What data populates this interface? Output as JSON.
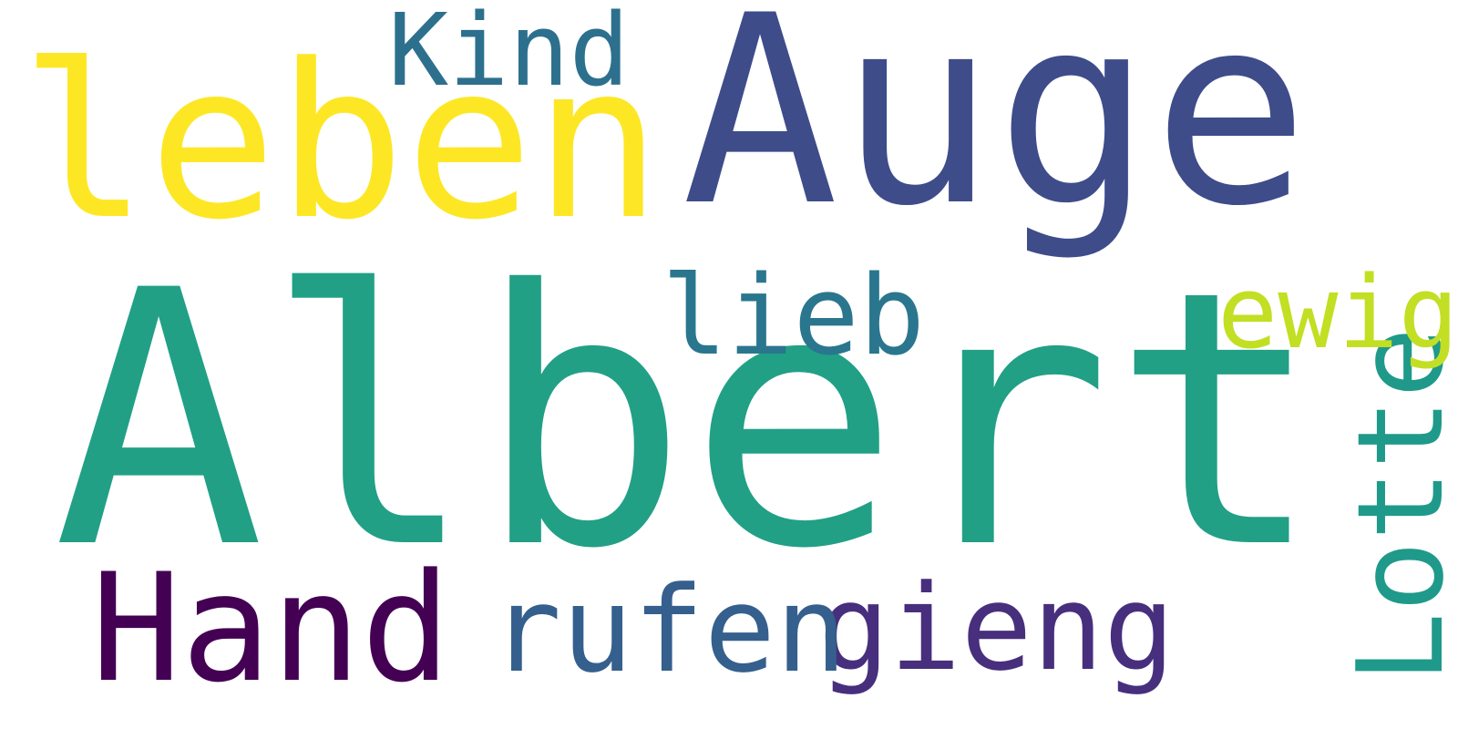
{
  "words": {
    "albert": {
      "text": "Albert",
      "color": "#21a086"
    },
    "auge": {
      "text": "Auge",
      "color": "#3e4c8a"
    },
    "leben": {
      "text": "leben",
      "color": "#fde725"
    },
    "hand": {
      "text": "Hand",
      "color": "#440154"
    },
    "gieng": {
      "text": "gieng",
      "color": "#472f7d"
    },
    "rufen": {
      "text": "rufen",
      "color": "#355f8d"
    },
    "lotte": {
      "text": "Lotte",
      "color": "#1f9a8a"
    },
    "lieb": {
      "text": "lieb",
      "color": "#2a768e"
    },
    "ewig": {
      "text": "ewig",
      "color": "#c2df23"
    },
    "kind": {
      "text": "Kind",
      "color": "#2d708e"
    }
  }
}
